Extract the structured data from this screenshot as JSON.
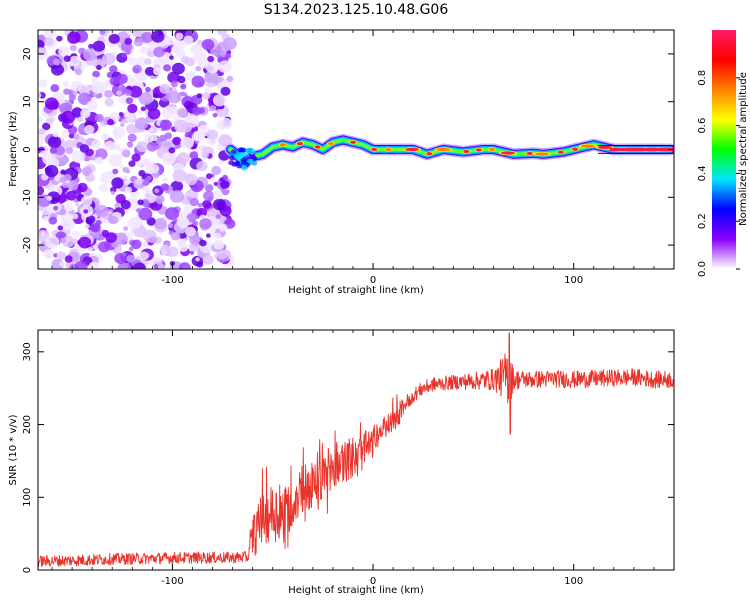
{
  "title": "S134.2023.125.10.48.G06",
  "chart_data": [
    {
      "type": "heatmap",
      "title": "S134.2023.125.10.48.G06",
      "xlabel": "Height of straight line (km)",
      "ylabel": "Frequency (Hz)",
      "xlim": [
        -167,
        150
      ],
      "ylim": [
        -25,
        25
      ],
      "xticks": [
        -100,
        0,
        100
      ],
      "xtick_labels": [
        "-100",
        "0",
        "100"
      ],
      "yticks": [
        -20,
        -10,
        0,
        10,
        20
      ],
      "ytick_labels": [
        "-20",
        "-10",
        "0",
        "10",
        "20"
      ],
      "noise_region_x": [
        -167,
        -71
      ],
      "signal_track": {
        "x": [
          -71,
          -68,
          -66,
          -64,
          -62,
          -60,
          -55,
          -50,
          -45,
          -40,
          -35,
          -30,
          -25,
          -20,
          -15,
          -10,
          -5,
          0,
          10,
          20,
          27,
          35,
          45,
          55,
          60,
          70,
          80,
          85,
          95,
          100,
          105,
          110,
          115,
          120,
          130,
          140,
          148
        ],
        "freq": [
          0.0,
          -1.0,
          -2.0,
          -3.0,
          -2.0,
          -1.5,
          -1.0,
          0.5,
          1.0,
          0.5,
          1.5,
          1.0,
          0.0,
          1.5,
          2.0,
          1.5,
          1.0,
          0.0,
          0.0,
          0.0,
          -1.0,
          0.0,
          -0.5,
          0.0,
          0.0,
          -1.0,
          -0.8,
          -1.0,
          -0.5,
          0.0,
          0.5,
          1.0,
          0.5,
          0.0,
          0.0,
          0.0,
          0.0
        ]
      },
      "colorbar": {
        "label": "Normalized spectral amplitude",
        "range": [
          0,
          1
        ],
        "ticks": [
          0.0,
          0.2,
          0.4,
          0.6,
          0.8
        ],
        "tick_labels": [
          "0.0",
          "0.2",
          "0.4",
          "0.6",
          "0.8"
        ],
        "colors": [
          "#ffffff",
          "#8a00ff",
          "#0000ff",
          "#00e5ff",
          "#00ff00",
          "#ffff00",
          "#ff8000",
          "#ff0000",
          "#ff1a66"
        ]
      }
    },
    {
      "type": "line",
      "xlabel": "Height of straight line (km)",
      "ylabel": "SNR (10 * v/v)",
      "xlim": [
        -167,
        150
      ],
      "ylim": [
        0,
        330
      ],
      "xticks": [
        -100,
        0,
        100
      ],
      "xtick_labels": [
        "-100",
        "0",
        "100"
      ],
      "yticks": [
        0,
        100,
        200,
        300
      ],
      "ytick_labels": [
        "0",
        "100",
        "200",
        "300"
      ],
      "color": "#e8322a",
      "series": [
        {
          "name": "SNR",
          "x": [
            -167,
            -150,
            -130,
            -110,
            -90,
            -70,
            -62,
            -60,
            -55,
            -50,
            -45,
            -40,
            -35,
            -30,
            -25,
            -20,
            -15,
            -10,
            -5,
            0,
            5,
            10,
            15,
            20,
            25,
            30,
            40,
            50,
            60,
            65,
            68,
            70,
            75,
            80,
            90,
            100,
            110,
            120,
            130,
            140,
            150
          ],
          "y": [
            12,
            13,
            15,
            16,
            17,
            17,
            18,
            45,
            70,
            80,
            75,
            95,
            110,
            115,
            130,
            145,
            150,
            155,
            165,
            175,
            195,
            205,
            225,
            240,
            250,
            255,
            258,
            260,
            262,
            265,
            268,
            262,
            262,
            262,
            263,
            262,
            263,
            264,
            265,
            262,
            262
          ],
          "spread": [
            8,
            8,
            8,
            8,
            8,
            8,
            8,
            30,
            35,
            40,
            40,
            35,
            35,
            35,
            30,
            35,
            30,
            30,
            25,
            20,
            15,
            15,
            12,
            10,
            10,
            10,
            10,
            12,
            15,
            30,
            45,
            15,
            12,
            12,
            12,
            12,
            12,
            12,
            12,
            12,
            12
          ]
        }
      ]
    }
  ]
}
